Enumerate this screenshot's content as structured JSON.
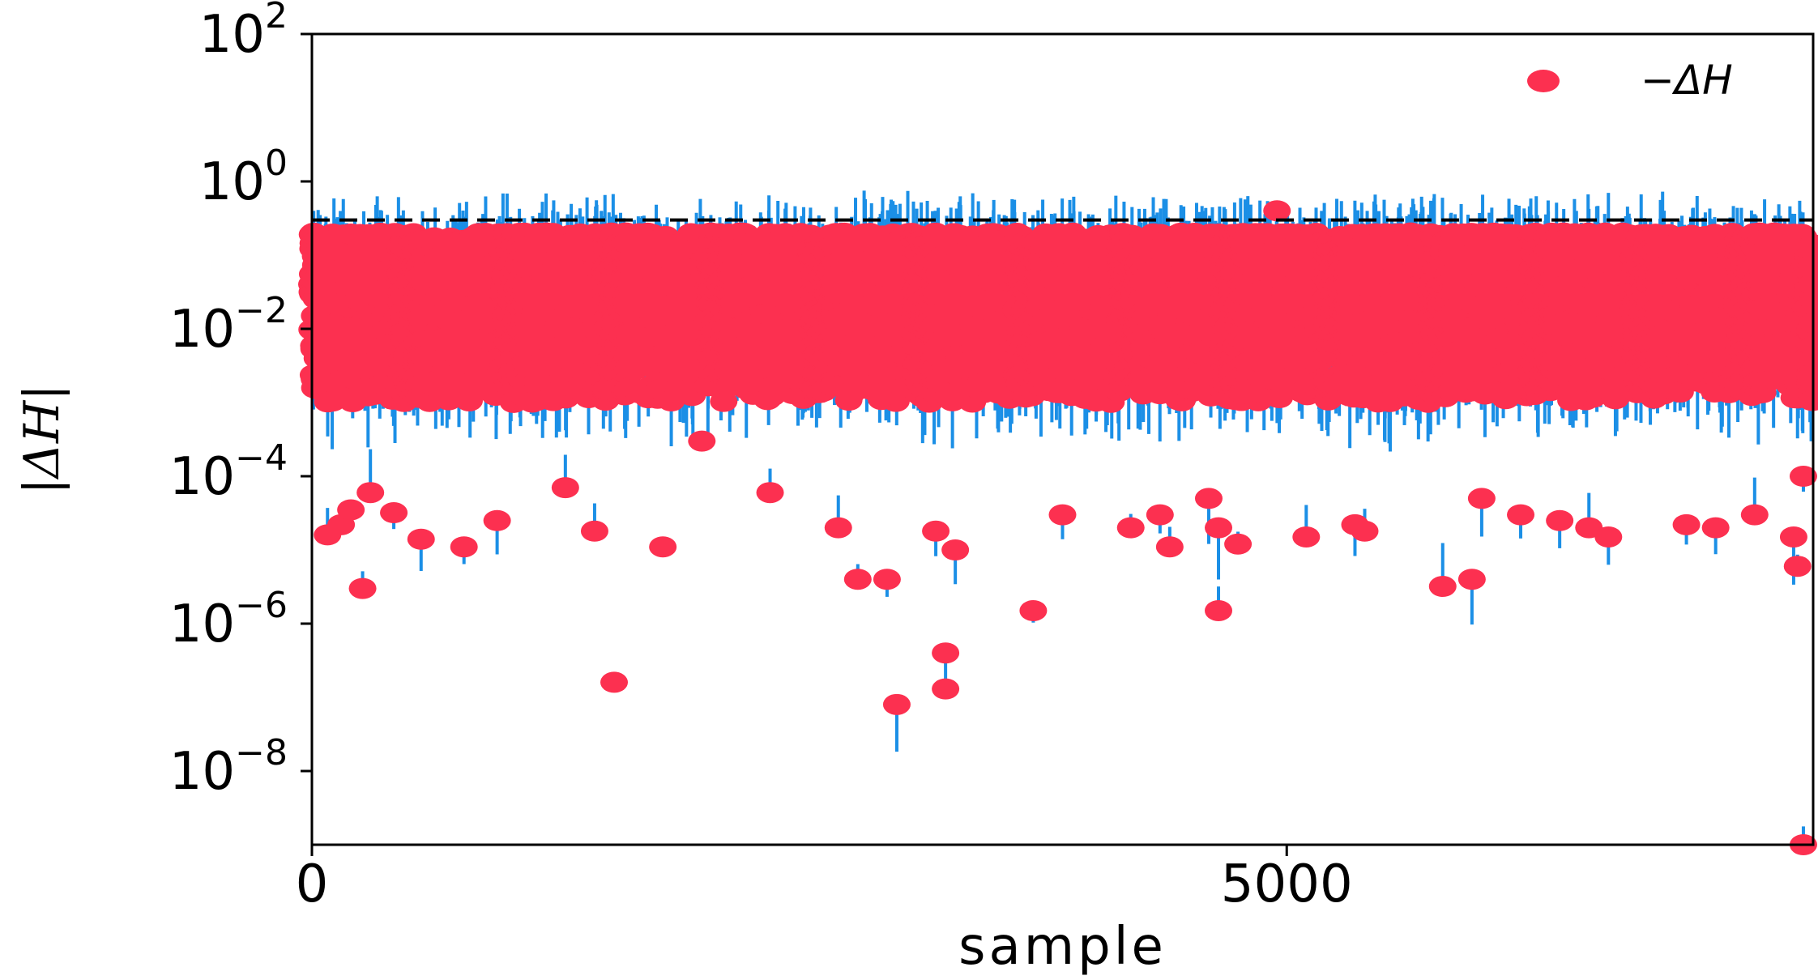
{
  "chart_data": {
    "type": "scatter",
    "xlabel": "sample",
    "ylabel": "|ΔH|",
    "x_ticks": [
      {
        "value": 0,
        "label": "0"
      },
      {
        "value": 5000,
        "label": "5000"
      }
    ],
    "y_ticks": [
      {
        "exp": 2,
        "label_base": "10",
        "label_exp": "2"
      },
      {
        "exp": 0,
        "label_base": "10",
        "label_exp": "0"
      },
      {
        "exp": -2,
        "label_base": "10",
        "label_exp": "−2"
      },
      {
        "exp": -4,
        "label_base": "10",
        "label_exp": "−4"
      },
      {
        "exp": -6,
        "label_base": "10",
        "label_exp": "−6"
      },
      {
        "exp": -8,
        "label_base": "10",
        "label_exp": "−8"
      }
    ],
    "xlim": [
      0,
      7700
    ],
    "ylim": [
      1e-09,
      100
    ],
    "yscale": "log",
    "threshold_line": {
      "y": 0.3,
      "style": "dashed",
      "color": "#000000"
    },
    "legend": {
      "position": "top-right",
      "entries": [
        {
          "label": "−ΔH",
          "color": "#fc3050",
          "marker": "circle"
        }
      ]
    },
    "series": [
      {
        "name": "−ΔH",
        "marker_color": "#fc3050",
        "stem_color": "#1b8fe6",
        "bulk": {
          "x_range": [
            0,
            7700
          ],
          "y_range": [
            0.001,
            0.2
          ],
          "count": 7700,
          "seed": 7
        },
        "outliers": [
          {
            "x": 80,
            "y": 1.6e-05
          },
          {
            "x": 150,
            "y": 2.2e-05
          },
          {
            "x": 200,
            "y": 3.5e-05
          },
          {
            "x": 260,
            "y": 3e-06
          },
          {
            "x": 420,
            "y": 3.2e-05
          },
          {
            "x": 560,
            "y": 1.4e-05
          },
          {
            "x": 780,
            "y": 1.1e-05
          },
          {
            "x": 950,
            "y": 2.5e-05
          },
          {
            "x": 1450,
            "y": 1.8e-05
          },
          {
            "x": 1550,
            "y": 1.6e-07
          },
          {
            "x": 1800,
            "y": 1.1e-05
          },
          {
            "x": 2000,
            "y": 0.0003
          },
          {
            "x": 2350,
            "y": 6e-05
          },
          {
            "x": 2700,
            "y": 2e-05
          },
          {
            "x": 2800,
            "y": 4e-06
          },
          {
            "x": 2950,
            "y": 4e-06
          },
          {
            "x": 3000,
            "y": 8e-08
          },
          {
            "x": 3200,
            "y": 1.8e-05
          },
          {
            "x": 3250,
            "y": 4e-07
          },
          {
            "x": 3250,
            "y": 1.3e-07
          },
          {
            "x": 3300,
            "y": 1e-05
          },
          {
            "x": 3700,
            "y": 1.5e-06
          },
          {
            "x": 3850,
            "y": 3e-05
          },
          {
            "x": 4200,
            "y": 2e-05
          },
          {
            "x": 4350,
            "y": 3e-05
          },
          {
            "x": 4400,
            "y": 1.1e-05
          },
          {
            "x": 4600,
            "y": 5e-05
          },
          {
            "x": 4650,
            "y": 2e-05
          },
          {
            "x": 4650,
            "y": 1.5e-06
          },
          {
            "x": 4750,
            "y": 1.2e-05
          },
          {
            "x": 5100,
            "y": 1.5e-05
          },
          {
            "x": 5350,
            "y": 2.2e-05
          },
          {
            "x": 5400,
            "y": 1.8e-05
          },
          {
            "x": 5800,
            "y": 3.2e-06
          },
          {
            "x": 5950,
            "y": 4e-06
          },
          {
            "x": 6000,
            "y": 5e-05
          },
          {
            "x": 6200,
            "y": 3e-05
          },
          {
            "x": 6400,
            "y": 2.5e-05
          },
          {
            "x": 6550,
            "y": 2e-05
          },
          {
            "x": 6650,
            "y": 1.5e-05
          },
          {
            "x": 7050,
            "y": 2.2e-05
          },
          {
            "x": 7200,
            "y": 2e-05
          },
          {
            "x": 7400,
            "y": 3e-05
          },
          {
            "x": 7600,
            "y": 1.5e-05
          },
          {
            "x": 7620,
            "y": 6e-06
          },
          {
            "x": 7650,
            "y": 1e-09
          },
          {
            "x": 7650,
            "y": 0.0001
          },
          {
            "x": 4950,
            "y": 0.4
          },
          {
            "x": 300,
            "y": 6e-05
          },
          {
            "x": 1300,
            "y": 7e-05
          }
        ]
      }
    ]
  }
}
